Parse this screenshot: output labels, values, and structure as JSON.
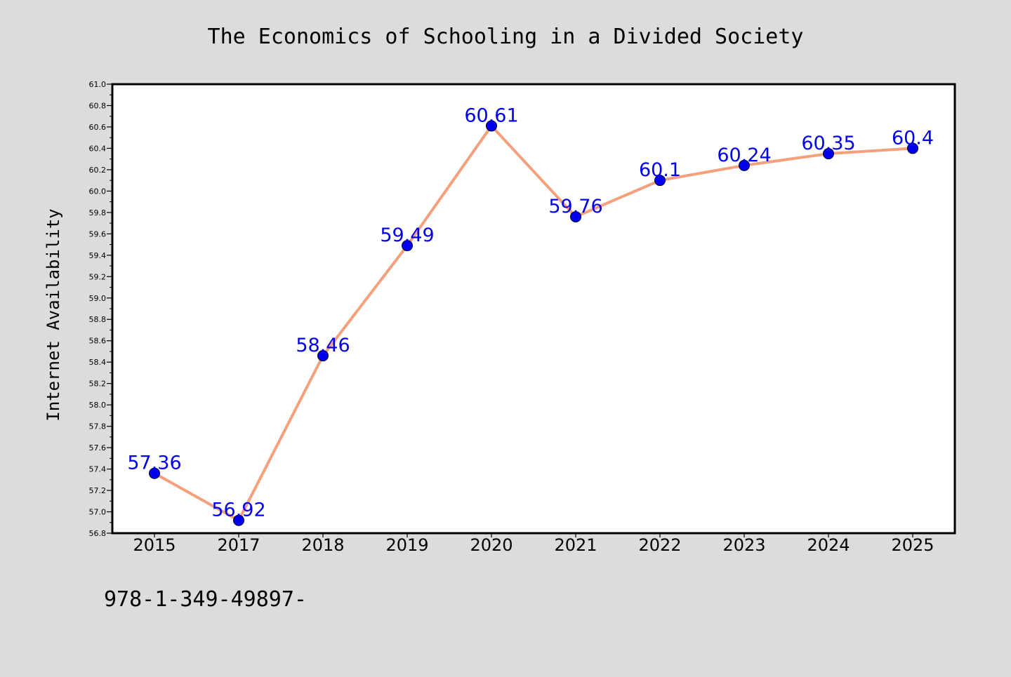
{
  "chart_data": {
    "type": "line",
    "title": "The Economics of Schooling in a Divided Society",
    "xlabel": "",
    "ylabel": "Internet Availability",
    "categories": [
      "2015",
      "2017",
      "2018",
      "2019",
      "2020",
      "2021",
      "2022",
      "2023",
      "2024",
      "2025"
    ],
    "series": [
      {
        "values": [
          57.36,
          56.92,
          58.46,
          59.49,
          60.61,
          59.76,
          60.1,
          60.24,
          60.35,
          60.4
        ]
      }
    ],
    "data_labels": [
      "57.36",
      "56.92",
      "58.46",
      "59.49",
      "60.61",
      "59.76",
      "60.1",
      "60.24",
      "60.35",
      "60.4"
    ],
    "ylim": [
      56.8,
      61.0
    ],
    "yticks": [
      56.8,
      57.0,
      57.2,
      57.4,
      57.6,
      57.8,
      58.0,
      58.2,
      58.4,
      58.6,
      58.8,
      59.0,
      59.2,
      59.4,
      59.6,
      59.8,
      60.0,
      60.2,
      60.4,
      60.6,
      60.8,
      61.0
    ],
    "grid": false,
    "legend": "none",
    "colors": {
      "background": "#dcdcdc",
      "plot_background": "#ffffff",
      "line": "#f4a07c",
      "marker": "#0000ee",
      "data_label": "#0000ee",
      "text": "#000000"
    },
    "annotation": "978-1-349-49897-"
  }
}
